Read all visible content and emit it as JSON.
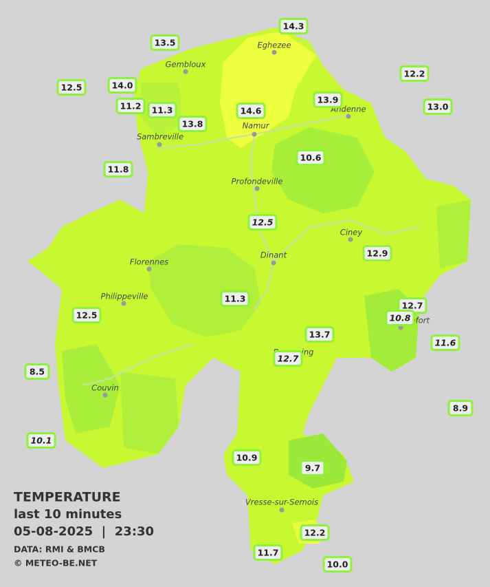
{
  "legend": {
    "title": "TEMPERATURE",
    "subtitle": "last 10 minutes",
    "datetime": "05-08-2025  |  23:30",
    "source": "DATA: RMI & BMCB",
    "credit": "© METEO-BE.NET"
  },
  "cities": [
    "Eghezee",
    "Gembloux",
    "Andenne",
    "Namur",
    "Sambreville",
    "Profondeville",
    "Ciney",
    "Dinant",
    "Florennes",
    "Philippeville",
    "Couvin",
    "Vresse-sur-Semois",
    "Beauraing",
    "Rochefort"
  ],
  "stations": [
    {
      "label": "14.3",
      "italic": false
    },
    {
      "label": "13.5",
      "italic": false
    },
    {
      "label": "12.5",
      "italic": false
    },
    {
      "label": "14.0",
      "italic": false
    },
    {
      "label": "11.2",
      "italic": false
    },
    {
      "label": "11.3",
      "italic": false
    },
    {
      "label": "13.8",
      "italic": false
    },
    {
      "label": "14.6",
      "italic": false
    },
    {
      "label": "13.9",
      "italic": false
    },
    {
      "label": "12.2",
      "italic": false
    },
    {
      "label": "13.0",
      "italic": false
    },
    {
      "label": "11.8",
      "italic": false
    },
    {
      "label": "10.6",
      "italic": false
    },
    {
      "label": "12.5",
      "italic": true
    },
    {
      "label": "12.9",
      "italic": false
    },
    {
      "label": "11.3",
      "italic": false
    },
    {
      "label": "12.5",
      "italic": false
    },
    {
      "label": "12.7",
      "italic": false
    },
    {
      "label": "10.8",
      "italic": true
    },
    {
      "label": "13.7",
      "italic": false
    },
    {
      "label": "11.6",
      "italic": true
    },
    {
      "label": "12.7",
      "italic": true
    },
    {
      "label": "8.5",
      "italic": false
    },
    {
      "label": "8.9",
      "italic": false
    },
    {
      "label": "10.1",
      "italic": true
    },
    {
      "label": "10.9",
      "italic": false
    },
    {
      "label": "9.7",
      "italic": false
    },
    {
      "label": "12.2",
      "italic": false
    },
    {
      "label": "11.7",
      "italic": false
    },
    {
      "label": "10.0",
      "italic": false
    }
  ]
}
